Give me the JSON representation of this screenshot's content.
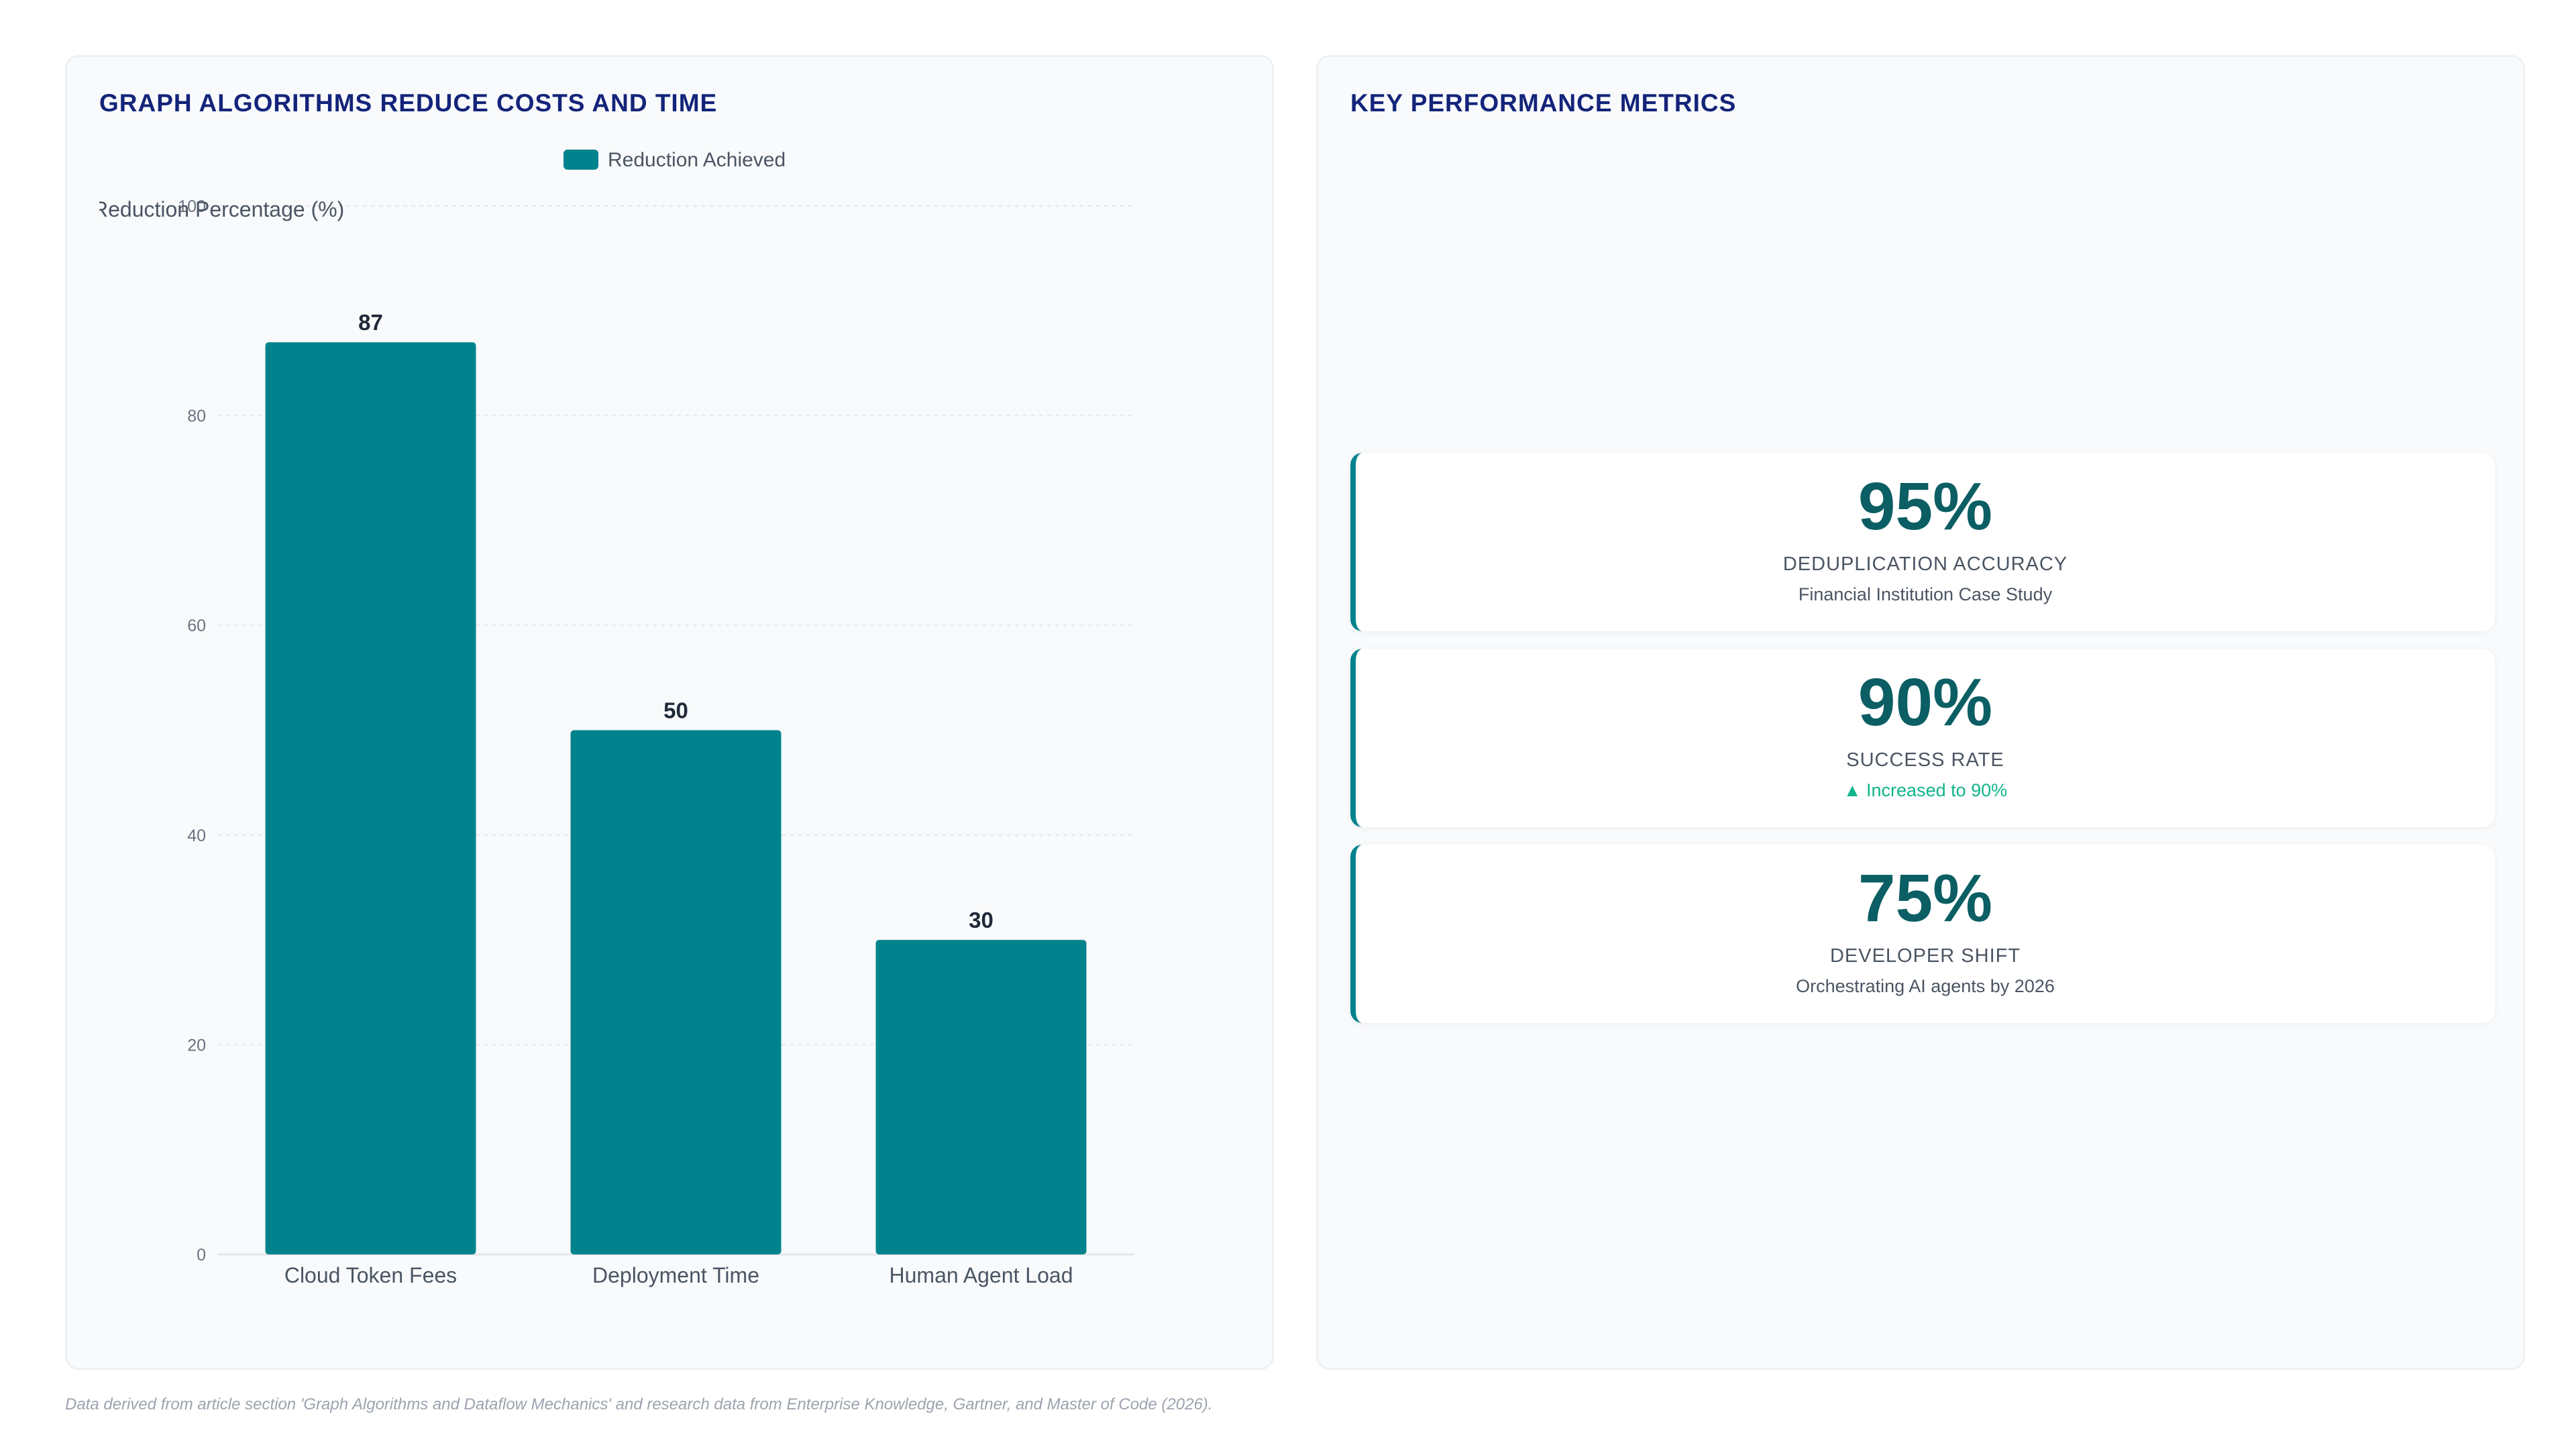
{
  "chart_panel": {
    "title": "GRAPH ALGORITHMS REDUCE COSTS AND TIME"
  },
  "chart_data": {
    "type": "bar",
    "title": "GRAPH ALGORITHMS REDUCE COSTS AND TIME",
    "categories": [
      "Cloud Token Fees",
      "Deployment Time",
      "Human Agent Load"
    ],
    "series": [
      {
        "name": "Reduction Achieved",
        "values": [
          87,
          50,
          30
        ]
      }
    ],
    "ylabel": "Reduction Percentage (%)",
    "xlabel": "",
    "ylim": [
      0,
      100
    ],
    "yticks": [
      0,
      20,
      40,
      60,
      80,
      100
    ],
    "grid": true,
    "legend_position": "top",
    "data_labels": true,
    "bar_color": "#00838c"
  },
  "metrics_panel": {
    "title": "KEY PERFORMANCE METRICS",
    "cards": [
      {
        "value": "95%",
        "label": "DEDUPLICATION ACCURACY",
        "sub": "Financial Institution Case Study"
      },
      {
        "value": "90%",
        "label": "SUCCESS RATE",
        "sub": "▲ Increased to 90%"
      },
      {
        "value": "75%",
        "label": "DEVELOPER SHIFT",
        "sub": "Orchestrating AI agents by 2026"
      }
    ]
  },
  "footnote": "Data derived from article section 'Graph Algorithms and Dataflow Mechanics' and research data from Enterprise Knowledge, Gartner, and Master of Code (2026).",
  "colors": {
    "accent": "#00838c",
    "title": "#14247a",
    "metric_value": "#0b5e63",
    "positive": "#10b58a"
  }
}
